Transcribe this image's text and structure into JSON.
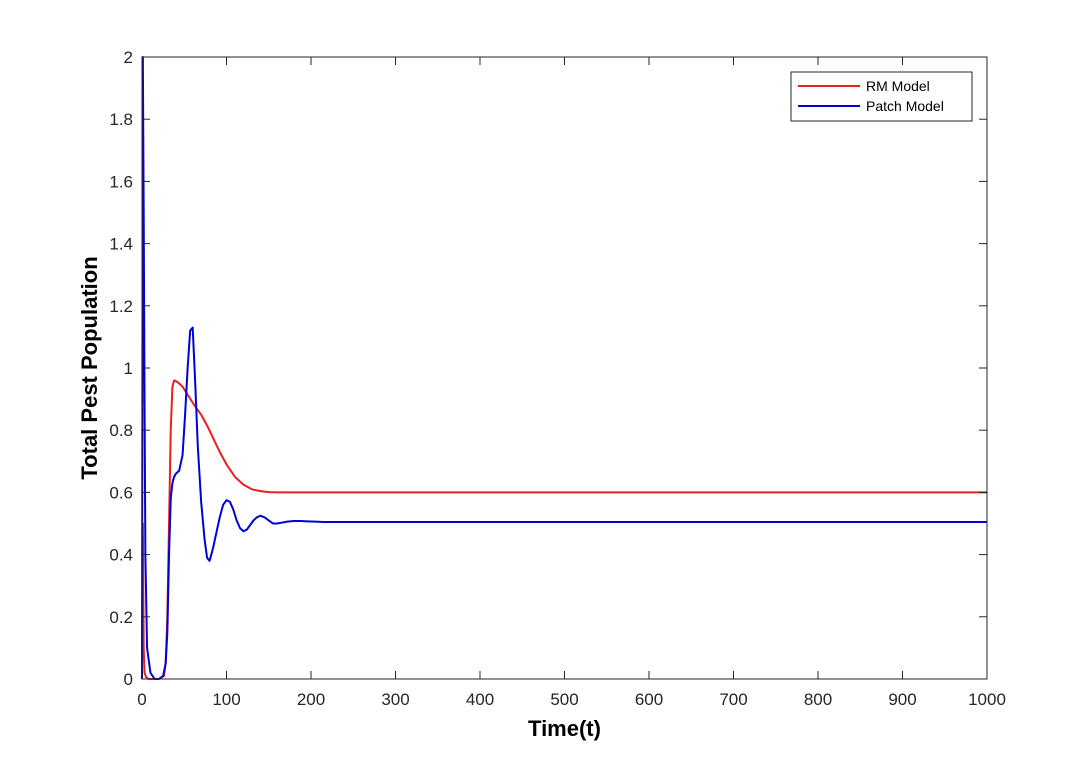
{
  "chart_data": {
    "type": "line",
    "title": "",
    "xlabel": "Time(t)",
    "ylabel": "Total Pest Population",
    "xlim": [
      0,
      1000
    ],
    "ylim": [
      0,
      2
    ],
    "xticks": [
      0,
      100,
      200,
      300,
      400,
      500,
      600,
      700,
      800,
      900,
      1000
    ],
    "yticks": [
      0,
      0.2,
      0.4,
      0.6,
      0.8,
      1,
      1.2,
      1.4,
      1.6,
      1.8,
      2
    ],
    "grid": false,
    "legend_position": "top-right",
    "series": [
      {
        "name": "RM Model",
        "color": "#e8201f",
        "x": [
          0,
          1,
          2,
          3,
          5,
          8,
          12,
          20,
          26,
          28,
          30,
          32,
          34,
          36,
          38,
          42,
          48,
          55,
          62,
          70,
          78,
          85,
          92,
          100,
          110,
          120,
          130,
          140,
          150,
          160,
          175,
          200,
          250,
          300,
          400,
          500,
          600,
          700,
          800,
          900,
          1000
        ],
        "y": [
          0.02,
          0.5,
          0.1,
          0.02,
          0.005,
          0.0,
          0.0,
          0.0,
          0.01,
          0.05,
          0.2,
          0.5,
          0.8,
          0.94,
          0.96,
          0.955,
          0.94,
          0.91,
          0.88,
          0.85,
          0.81,
          0.77,
          0.73,
          0.69,
          0.65,
          0.625,
          0.61,
          0.604,
          0.601,
          0.6,
          0.6,
          0.6,
          0.6,
          0.6,
          0.6,
          0.6,
          0.6,
          0.6,
          0.6,
          0.6,
          0.6
        ]
      },
      {
        "name": "Patch Model",
        "color": "#0000d8",
        "x": [
          0,
          1,
          2,
          3,
          4,
          6,
          10,
          15,
          20,
          25,
          28,
          30,
          32,
          34,
          36,
          38,
          40,
          44,
          48,
          51,
          54,
          57,
          60,
          63,
          66,
          70,
          74,
          77,
          80,
          84,
          88,
          92,
          96,
          100,
          104,
          108,
          112,
          116,
          120,
          124,
          128,
          132,
          136,
          140,
          145,
          150,
          155,
          160,
          166,
          172,
          180,
          188,
          196,
          205,
          215,
          230,
          250,
          300,
          400,
          500,
          600,
          700,
          800,
          900,
          1000
        ],
        "y": [
          0.0,
          2.0,
          1.5,
          0.9,
          0.4,
          0.1,
          0.02,
          0.0,
          0.0,
          0.01,
          0.05,
          0.15,
          0.4,
          0.58,
          0.63,
          0.65,
          0.66,
          0.67,
          0.72,
          0.85,
          1.0,
          1.12,
          1.13,
          0.95,
          0.75,
          0.57,
          0.45,
          0.39,
          0.38,
          0.42,
          0.47,
          0.52,
          0.56,
          0.575,
          0.57,
          0.545,
          0.51,
          0.485,
          0.475,
          0.48,
          0.495,
          0.51,
          0.52,
          0.525,
          0.52,
          0.51,
          0.5,
          0.5,
          0.503,
          0.506,
          0.508,
          0.508,
          0.507,
          0.506,
          0.505,
          0.505,
          0.505,
          0.505,
          0.505,
          0.505,
          0.505,
          0.505,
          0.505,
          0.505,
          0.505
        ]
      }
    ]
  }
}
